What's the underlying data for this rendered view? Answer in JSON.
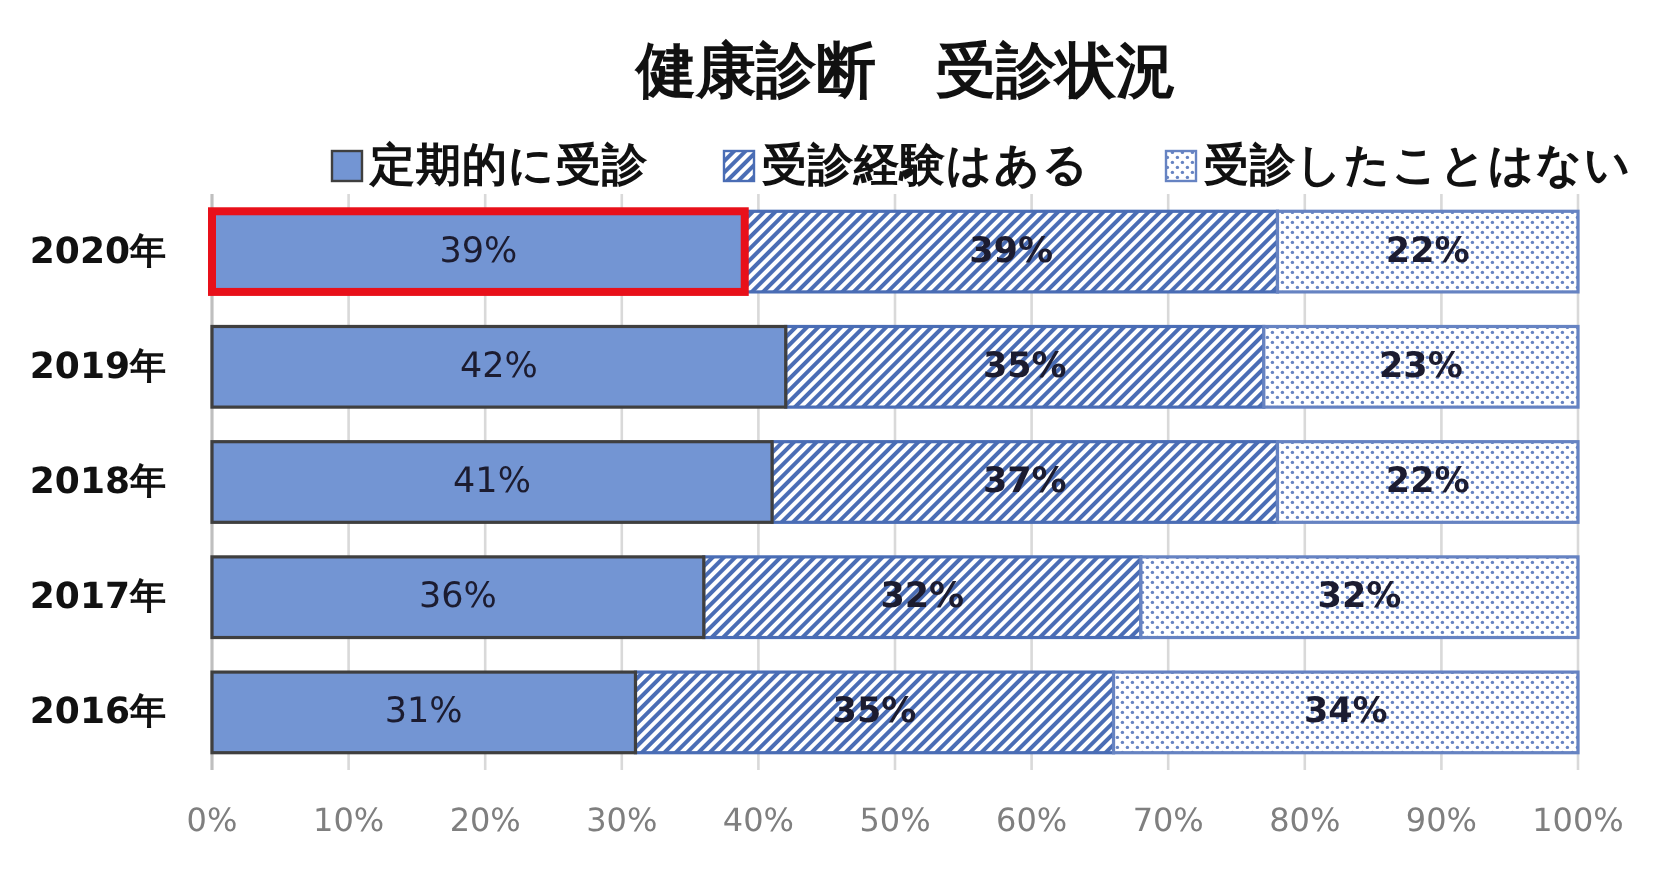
{
  "chart_data": {
    "type": "bar",
    "orientation": "horizontal",
    "stacked": true,
    "title": "健康診断　受診状況",
    "categories": [
      "2020年",
      "2019年",
      "2018年",
      "2017年",
      "2016年"
    ],
    "series": [
      {
        "name": "定期的に受診",
        "color": "#7395d3",
        "values": [
          39,
          42,
          41,
          36,
          31
        ],
        "value_labels": [
          "39%",
          "42%",
          "41%",
          "36%",
          "31%"
        ]
      },
      {
        "name": "受診経験はある",
        "color": "#4a6db5",
        "values": [
          39,
          35,
          37,
          32,
          35
        ],
        "value_labels": [
          "39%",
          "35%",
          "37%",
          "32%",
          "35%"
        ]
      },
      {
        "name": "受診したことはない",
        "color": "#6683c2",
        "values": [
          22,
          23,
          22,
          32,
          34
        ],
        "value_labels": [
          "22%",
          "23%",
          "22%",
          "32%",
          "34%"
        ]
      }
    ],
    "xlim": [
      0,
      100
    ],
    "xticks": [
      {
        "value": 0,
        "label": "0%"
      },
      {
        "value": 10,
        "label": "10%"
      },
      {
        "value": 20,
        "label": "20%"
      },
      {
        "value": 30,
        "label": "30%"
      },
      {
        "value": 40,
        "label": "40%"
      },
      {
        "value": 50,
        "label": "50%"
      },
      {
        "value": 60,
        "label": "60%"
      },
      {
        "value": 70,
        "label": "70%"
      },
      {
        "value": 80,
        "label": "80%"
      },
      {
        "value": 90,
        "label": "90%"
      },
      {
        "value": 100,
        "label": "100%"
      }
    ],
    "grid": "x",
    "legend": "top"
  }
}
